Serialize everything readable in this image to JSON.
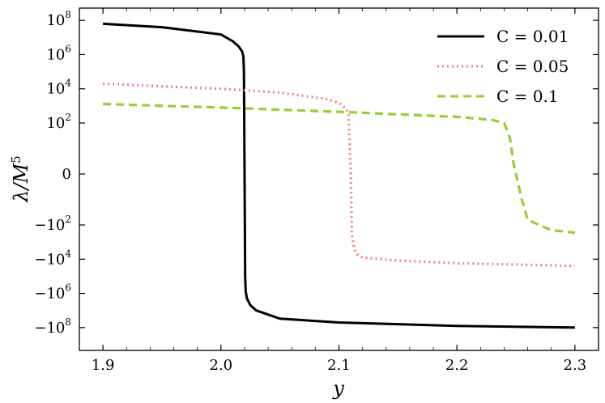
{
  "chart_data": {
    "type": "line",
    "title": "",
    "xlabel": "y",
    "ylabel": "λ/M^5",
    "xlim": [
      1.88,
      2.32
    ],
    "y_scale": "symlog",
    "y_ticks": [
      {
        "value": 100000000,
        "label": "10^8"
      },
      {
        "value": 1000000,
        "label": "10^6"
      },
      {
        "value": 10000,
        "label": "10^4"
      },
      {
        "value": 100,
        "label": "10^2"
      },
      {
        "value": 0,
        "label": "0"
      },
      {
        "value": -100,
        "label": "-10^2"
      },
      {
        "value": -10000,
        "label": "-10^4"
      },
      {
        "value": -1000000,
        "label": "-10^6"
      },
      {
        "value": -100000000,
        "label": "-10^8"
      }
    ],
    "x_ticks": [
      1.9,
      2.0,
      2.1,
      2.2,
      2.3
    ],
    "x_tick_labels": [
      "1.9",
      "2.0",
      "2.1",
      "2.2",
      "2.3"
    ],
    "legend_position": "top-right",
    "grid": false,
    "series": [
      {
        "name": "C = 0.01",
        "color": "#000000",
        "style": "solid",
        "x": [
          1.9,
          1.95,
          2.0,
          2.01,
          2.015,
          2.018,
          2.019,
          2.0195,
          2.0205,
          2.021,
          2.022,
          2.025,
          2.03,
          2.05,
          2.1,
          2.2,
          2.3
        ],
        "y": [
          63000000,
          40000000,
          15000000,
          6000000,
          3000000,
          1500000,
          800000,
          100000,
          -100000,
          -800000,
          -2000000,
          -5000000,
          -10000000,
          -30000000,
          -50000000,
          -80000000,
          -100000000
        ]
      },
      {
        "name": "C = 0.05",
        "color": "#f08080",
        "style": "dotted",
        "x": [
          1.9,
          2.0,
          2.05,
          2.09,
          2.1,
          2.105,
          2.108,
          2.11,
          2.111,
          2.112,
          2.113,
          2.115,
          2.12,
          2.15,
          2.2,
          2.3
        ],
        "y": [
          20000,
          10000,
          6000,
          2500,
          1500,
          800,
          400,
          0,
          -400,
          -1000,
          -2500,
          -5000,
          -8000,
          -12000,
          -17000,
          -25000
        ]
      },
      {
        "name": "C = 0.1",
        "color": "#9acd32",
        "style": "dashed",
        "x": [
          1.9,
          2.0,
          2.1,
          2.2,
          2.23,
          2.24,
          2.245,
          2.248,
          2.25,
          2.252,
          2.255,
          2.26,
          2.28,
          2.3
        ],
        "y": [
          1300,
          800,
          450,
          230,
          150,
          100,
          70,
          20,
          0,
          -20,
          -50,
          -90,
          -200,
          -280
        ]
      }
    ]
  }
}
